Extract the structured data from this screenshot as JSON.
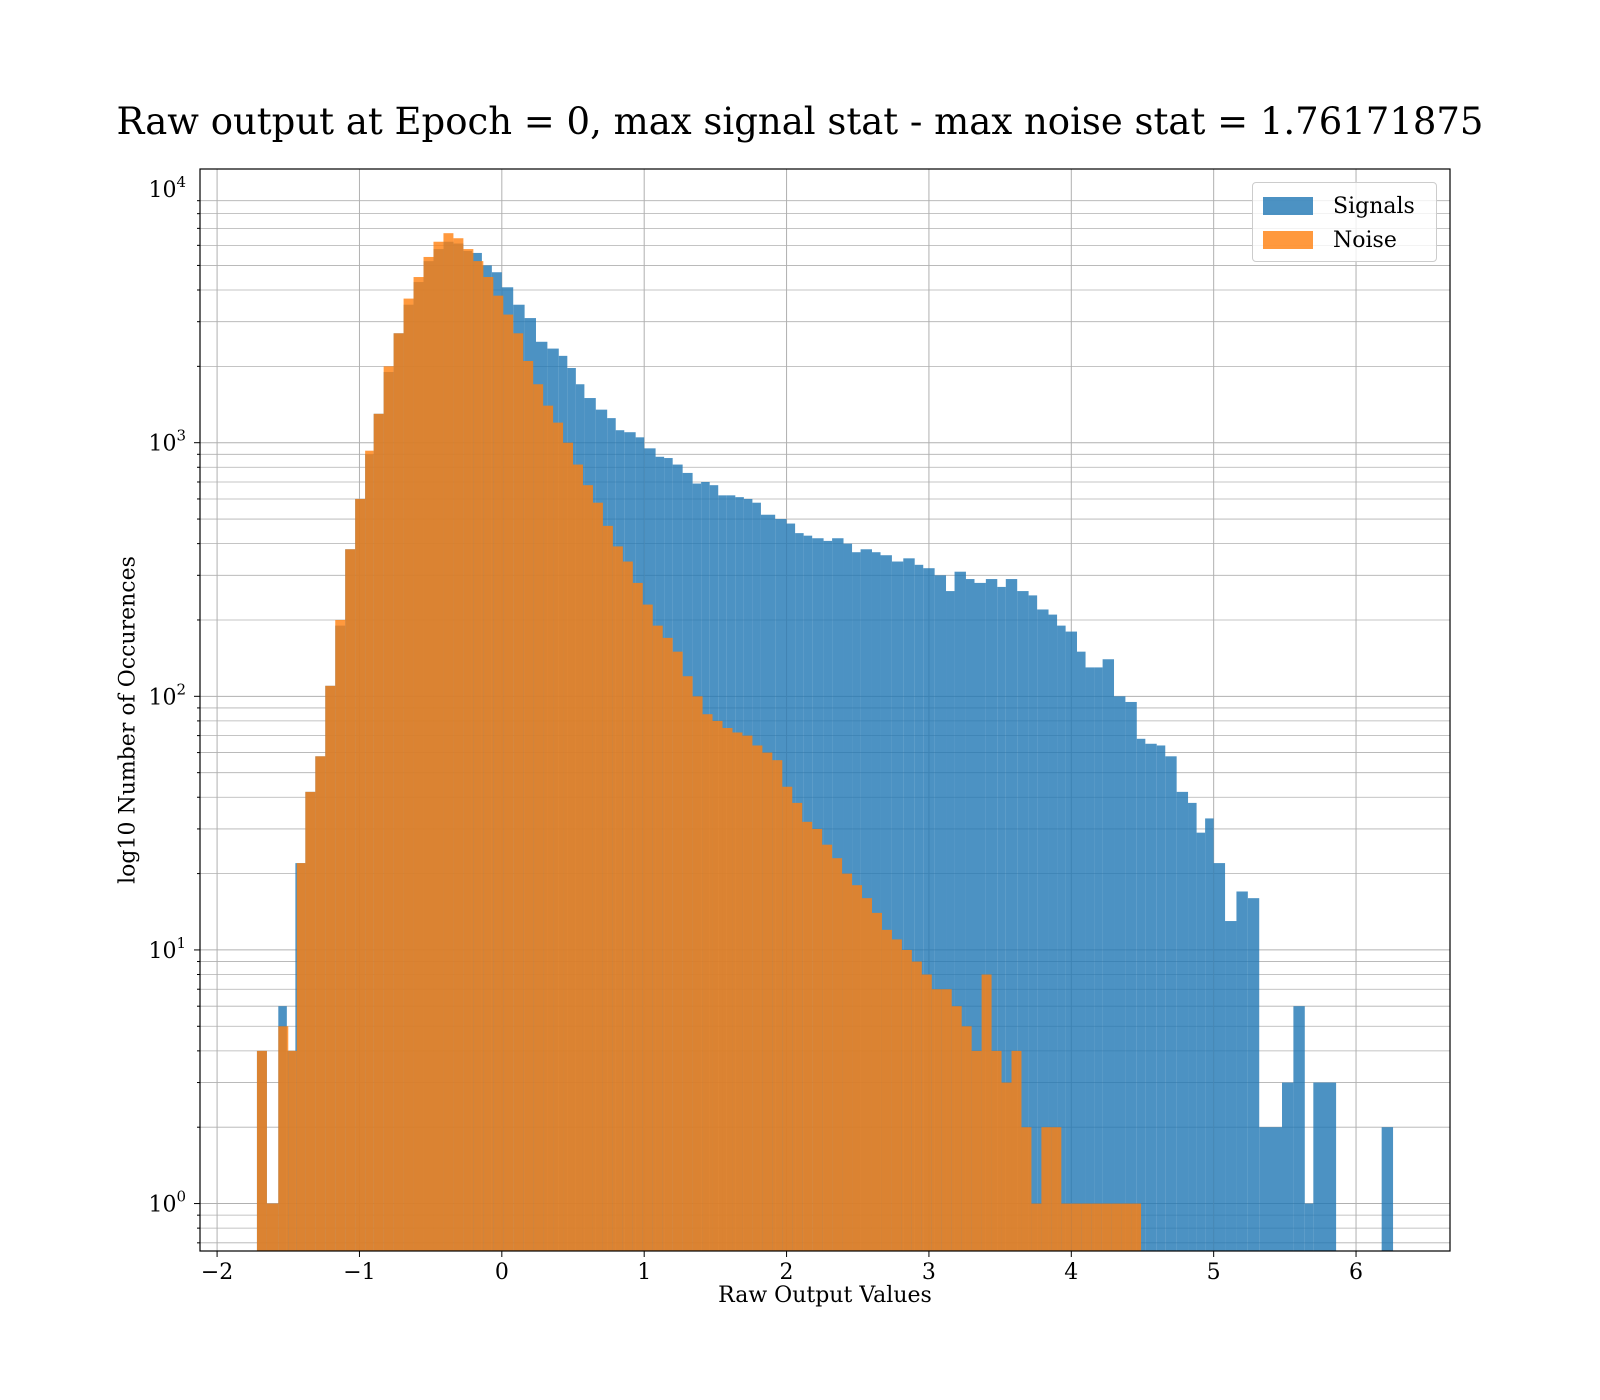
{
  "chart_data": {
    "type": "bar",
    "subtype": "histogram",
    "title": "Raw output at Epoch = 0, max signal stat - max noise stat = 1.76171875",
    "xlabel": "Raw Output Values",
    "ylabel": "log10 Number of Occurences",
    "xlim": [
      -2.12,
      6.66
    ],
    "ylim": [
      0.65,
      12000
    ],
    "yscale": "log",
    "grid": true,
    "legend_position": "top-right",
    "xticks": [
      {
        "value": -2,
        "label": "−2"
      },
      {
        "value": -1,
        "label": "−1"
      },
      {
        "value": 0,
        "label": "0"
      },
      {
        "value": 1,
        "label": "1"
      },
      {
        "value": 2,
        "label": "2"
      },
      {
        "value": 3,
        "label": "3"
      },
      {
        "value": 4,
        "label": "4"
      },
      {
        "value": 5,
        "label": "5"
      },
      {
        "value": 6,
        "label": "6"
      }
    ],
    "yticks": [
      {
        "value": 1,
        "base": "10",
        "exp": "0"
      },
      {
        "value": 10,
        "base": "10",
        "exp": "1"
      },
      {
        "value": 100,
        "base": "10",
        "exp": "2"
      },
      {
        "value": 1000,
        "base": "10",
        "exp": "3"
      },
      {
        "value": 10000,
        "base": "10",
        "exp": "4"
      }
    ],
    "series": [
      {
        "name": "Signals",
        "color": "#1f77b4",
        "opacity": 0.8,
        "bins": [
          [
            -1.72,
            -1.65,
            4
          ],
          [
            -1.65,
            -1.57,
            1
          ],
          [
            -1.57,
            -1.51,
            6
          ],
          [
            -1.51,
            -1.45,
            4
          ],
          [
            -1.45,
            -1.38,
            22
          ],
          [
            -1.38,
            -1.31,
            42
          ],
          [
            -1.31,
            -1.24,
            58
          ],
          [
            -1.24,
            -1.17,
            110
          ],
          [
            -1.17,
            -1.1,
            190
          ],
          [
            -1.1,
            -1.03,
            380
          ],
          [
            -1.03,
            -0.96,
            600
          ],
          [
            -0.96,
            -0.9,
            900
          ],
          [
            -0.9,
            -0.83,
            1300
          ],
          [
            -0.83,
            -0.76,
            1900
          ],
          [
            -0.76,
            -0.69,
            2700
          ],
          [
            -0.69,
            -0.62,
            3500
          ],
          [
            -0.62,
            -0.55,
            4300
          ],
          [
            -0.55,
            -0.48,
            5200
          ],
          [
            -0.48,
            -0.41,
            5800
          ],
          [
            -0.41,
            -0.34,
            6200
          ],
          [
            -0.34,
            -0.27,
            6100
          ],
          [
            -0.27,
            -0.21,
            5700
          ],
          [
            -0.21,
            -0.14,
            5600
          ],
          [
            -0.14,
            -0.07,
            5000
          ],
          [
            -0.07,
            0.0,
            4700
          ],
          [
            0.0,
            0.08,
            4100
          ],
          [
            0.08,
            0.16,
            3500
          ],
          [
            0.16,
            0.24,
            3100
          ],
          [
            0.24,
            0.32,
            2500
          ],
          [
            0.32,
            0.4,
            2350
          ],
          [
            0.4,
            0.46,
            2200
          ],
          [
            0.46,
            0.52,
            1970
          ],
          [
            0.52,
            0.58,
            1700
          ],
          [
            0.58,
            0.66,
            1500
          ],
          [
            0.66,
            0.74,
            1350
          ],
          [
            0.74,
            0.8,
            1250
          ],
          [
            0.8,
            0.86,
            1120
          ],
          [
            0.86,
            0.94,
            1100
          ],
          [
            0.94,
            1.0,
            1050
          ],
          [
            1.0,
            1.08,
            950
          ],
          [
            1.08,
            1.14,
            880
          ],
          [
            1.14,
            1.2,
            870
          ],
          [
            1.2,
            1.27,
            820
          ],
          [
            1.27,
            1.34,
            760
          ],
          [
            1.34,
            1.4,
            690
          ],
          [
            1.4,
            1.46,
            700
          ],
          [
            1.46,
            1.52,
            680
          ],
          [
            1.52,
            1.58,
            620
          ],
          [
            1.58,
            1.64,
            620
          ],
          [
            1.64,
            1.7,
            610
          ],
          [
            1.7,
            1.76,
            600
          ],
          [
            1.76,
            1.82,
            580
          ],
          [
            1.82,
            1.92,
            520
          ],
          [
            1.92,
            2.0,
            500
          ],
          [
            2.0,
            2.06,
            480
          ],
          [
            2.06,
            2.12,
            440
          ],
          [
            2.12,
            2.18,
            430
          ],
          [
            2.18,
            2.26,
            420
          ],
          [
            2.26,
            2.32,
            410
          ],
          [
            2.32,
            2.4,
            420
          ],
          [
            2.4,
            2.46,
            400
          ],
          [
            2.46,
            2.52,
            370
          ],
          [
            2.52,
            2.6,
            380
          ],
          [
            2.6,
            2.66,
            370
          ],
          [
            2.66,
            2.74,
            360
          ],
          [
            2.74,
            2.82,
            340
          ],
          [
            2.82,
            2.9,
            350
          ],
          [
            2.9,
            2.96,
            330
          ],
          [
            2.96,
            3.04,
            320
          ],
          [
            3.04,
            3.12,
            300
          ],
          [
            3.12,
            3.18,
            260
          ],
          [
            3.18,
            3.26,
            310
          ],
          [
            3.26,
            3.32,
            290
          ],
          [
            3.32,
            3.4,
            280
          ],
          [
            3.4,
            3.48,
            290
          ],
          [
            3.48,
            3.54,
            270
          ],
          [
            3.54,
            3.62,
            290
          ],
          [
            3.62,
            3.7,
            260
          ],
          [
            3.7,
            3.76,
            250
          ],
          [
            3.76,
            3.84,
            220
          ],
          [
            3.84,
            3.9,
            210
          ],
          [
            3.9,
            3.96,
            190
          ],
          [
            3.96,
            4.04,
            180
          ],
          [
            4.04,
            4.1,
            150
          ],
          [
            4.1,
            4.16,
            130
          ],
          [
            4.16,
            4.22,
            130
          ],
          [
            4.22,
            4.3,
            140
          ],
          [
            4.3,
            4.38,
            100
          ],
          [
            4.38,
            4.46,
            95
          ],
          [
            4.46,
            4.52,
            68
          ],
          [
            4.52,
            4.6,
            65
          ],
          [
            4.6,
            4.66,
            64
          ],
          [
            4.66,
            4.74,
            58
          ],
          [
            4.74,
            4.82,
            42
          ],
          [
            4.82,
            4.88,
            38
          ],
          [
            4.88,
            4.94,
            29
          ],
          [
            4.94,
            5.0,
            33
          ],
          [
            5.0,
            5.08,
            22
          ],
          [
            5.08,
            5.16,
            13
          ],
          [
            5.16,
            5.24,
            17
          ],
          [
            5.24,
            5.32,
            16
          ],
          [
            5.32,
            5.48,
            2
          ],
          [
            5.48,
            5.56,
            3
          ],
          [
            5.56,
            5.64,
            6
          ],
          [
            5.64,
            5.7,
            1
          ],
          [
            5.7,
            5.86,
            3
          ],
          [
            6.18,
            6.26,
            2
          ]
        ]
      },
      {
        "name": "Noise",
        "color": "#ff7f0e",
        "opacity": 0.8,
        "bins": [
          [
            -1.72,
            -1.65,
            4
          ],
          [
            -1.65,
            -1.57,
            1
          ],
          [
            -1.57,
            -1.5,
            5
          ],
          [
            -1.5,
            -1.44,
            4
          ],
          [
            -1.44,
            -1.38,
            22
          ],
          [
            -1.38,
            -1.31,
            42
          ],
          [
            -1.31,
            -1.24,
            58
          ],
          [
            -1.24,
            -1.17,
            110
          ],
          [
            -1.17,
            -1.1,
            200
          ],
          [
            -1.1,
            -1.03,
            380
          ],
          [
            -1.03,
            -0.96,
            600
          ],
          [
            -0.96,
            -0.9,
            930
          ],
          [
            -0.9,
            -0.83,
            1300
          ],
          [
            -0.83,
            -0.76,
            2000
          ],
          [
            -0.76,
            -0.69,
            2700
          ],
          [
            -0.69,
            -0.62,
            3700
          ],
          [
            -0.62,
            -0.55,
            4500
          ],
          [
            -0.55,
            -0.48,
            5400
          ],
          [
            -0.48,
            -0.41,
            6200
          ],
          [
            -0.41,
            -0.34,
            6700
          ],
          [
            -0.34,
            -0.27,
            6400
          ],
          [
            -0.27,
            -0.2,
            5800
          ],
          [
            -0.2,
            -0.13,
            5200
          ],
          [
            -0.13,
            -0.06,
            4500
          ],
          [
            -0.06,
            0.01,
            3800
          ],
          [
            0.01,
            0.08,
            3200
          ],
          [
            0.08,
            0.15,
            2700
          ],
          [
            0.15,
            0.22,
            2100
          ],
          [
            0.22,
            0.29,
            1700
          ],
          [
            0.29,
            0.36,
            1400
          ],
          [
            0.36,
            0.43,
            1200
          ],
          [
            0.43,
            0.5,
            1000
          ],
          [
            0.5,
            0.57,
            820
          ],
          [
            0.57,
            0.64,
            680
          ],
          [
            0.64,
            0.71,
            580
          ],
          [
            0.71,
            0.78,
            470
          ],
          [
            0.78,
            0.85,
            390
          ],
          [
            0.85,
            0.92,
            340
          ],
          [
            0.92,
            0.99,
            280
          ],
          [
            0.99,
            1.06,
            230
          ],
          [
            1.06,
            1.13,
            190
          ],
          [
            1.13,
            1.2,
            170
          ],
          [
            1.2,
            1.27,
            150
          ],
          [
            1.27,
            1.34,
            120
          ],
          [
            1.34,
            1.41,
            100
          ],
          [
            1.41,
            1.48,
            85
          ],
          [
            1.48,
            1.55,
            80
          ],
          [
            1.55,
            1.62,
            75
          ],
          [
            1.62,
            1.69,
            72
          ],
          [
            1.69,
            1.76,
            70
          ],
          [
            1.76,
            1.83,
            64
          ],
          [
            1.83,
            1.9,
            60
          ],
          [
            1.9,
            1.97,
            56
          ],
          [
            1.97,
            2.04,
            44
          ],
          [
            2.04,
            2.11,
            38
          ],
          [
            2.11,
            2.18,
            32
          ],
          [
            2.18,
            2.25,
            30
          ],
          [
            2.25,
            2.32,
            26
          ],
          [
            2.32,
            2.39,
            23
          ],
          [
            2.39,
            2.46,
            20
          ],
          [
            2.46,
            2.53,
            18
          ],
          [
            2.53,
            2.6,
            16
          ],
          [
            2.6,
            2.67,
            14
          ],
          [
            2.67,
            2.74,
            12
          ],
          [
            2.74,
            2.81,
            11
          ],
          [
            2.81,
            2.88,
            10
          ],
          [
            2.88,
            2.95,
            9
          ],
          [
            2.95,
            3.02,
            8
          ],
          [
            3.02,
            3.09,
            7
          ],
          [
            3.09,
            3.16,
            7
          ],
          [
            3.16,
            3.23,
            6
          ],
          [
            3.23,
            3.3,
            5
          ],
          [
            3.3,
            3.37,
            4
          ],
          [
            3.37,
            3.44,
            8
          ],
          [
            3.44,
            3.51,
            4
          ],
          [
            3.51,
            3.58,
            3
          ],
          [
            3.58,
            3.65,
            4
          ],
          [
            3.65,
            3.72,
            2
          ],
          [
            3.72,
            3.79,
            1
          ],
          [
            3.79,
            3.86,
            2
          ],
          [
            3.86,
            3.93,
            2
          ],
          [
            3.93,
            4.0,
            1
          ],
          [
            4.0,
            4.07,
            1
          ],
          [
            4.07,
            4.14,
            1
          ],
          [
            4.14,
            4.21,
            1
          ],
          [
            4.21,
            4.28,
            1
          ],
          [
            4.28,
            4.35,
            1
          ],
          [
            4.35,
            4.42,
            1
          ],
          [
            4.42,
            4.49,
            1
          ]
        ]
      }
    ]
  }
}
